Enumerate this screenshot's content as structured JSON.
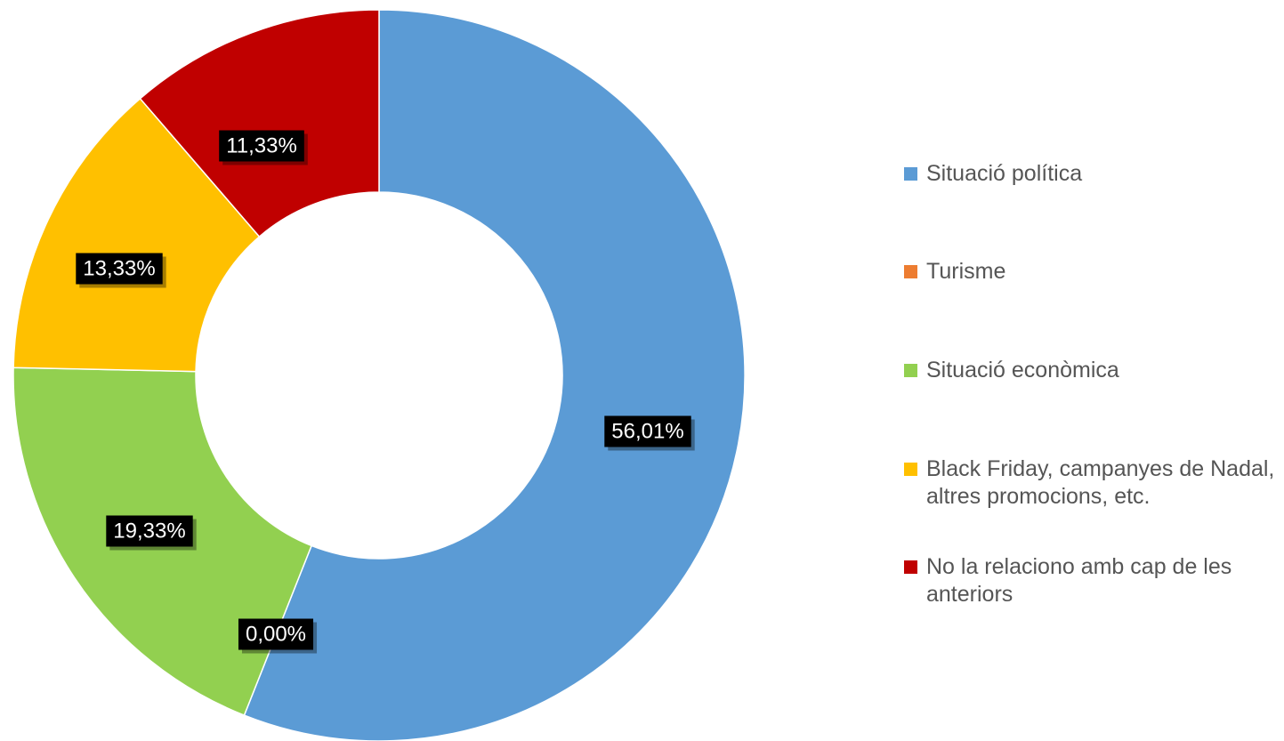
{
  "chart_data": {
    "type": "pie",
    "variant": "donut",
    "categories": [
      "Situació política",
      "Turisme",
      "Situació econòmica",
      "Black Friday, campanyes de Nadal, altres promocions, etc.",
      "No la relaciono amb cap de les anteriors"
    ],
    "values": [
      56.01,
      0.0,
      19.33,
      13.33,
      11.33
    ],
    "data_labels": [
      "56,01%",
      "0,00%",
      "19,33%",
      "13,33%",
      "11,33%"
    ],
    "colors": [
      "#5b9bd5",
      "#ed7d31",
      "#92d050",
      "#ffc000",
      "#c00000"
    ],
    "legend_position": "right",
    "title": ""
  },
  "legend": {
    "items": [
      {
        "label": "Situació política",
        "color": "#5b9bd5"
      },
      {
        "label": "Turisme",
        "color": "#ed7d31"
      },
      {
        "label": "Situació econòmica",
        "color": "#92d050"
      },
      {
        "label": "Black Friday, campanyes de Nadal, altres promocions, etc.",
        "color": "#ffc000"
      },
      {
        "label": "No la relaciono amb cap de les anteriors",
        "color": "#c00000"
      }
    ]
  }
}
